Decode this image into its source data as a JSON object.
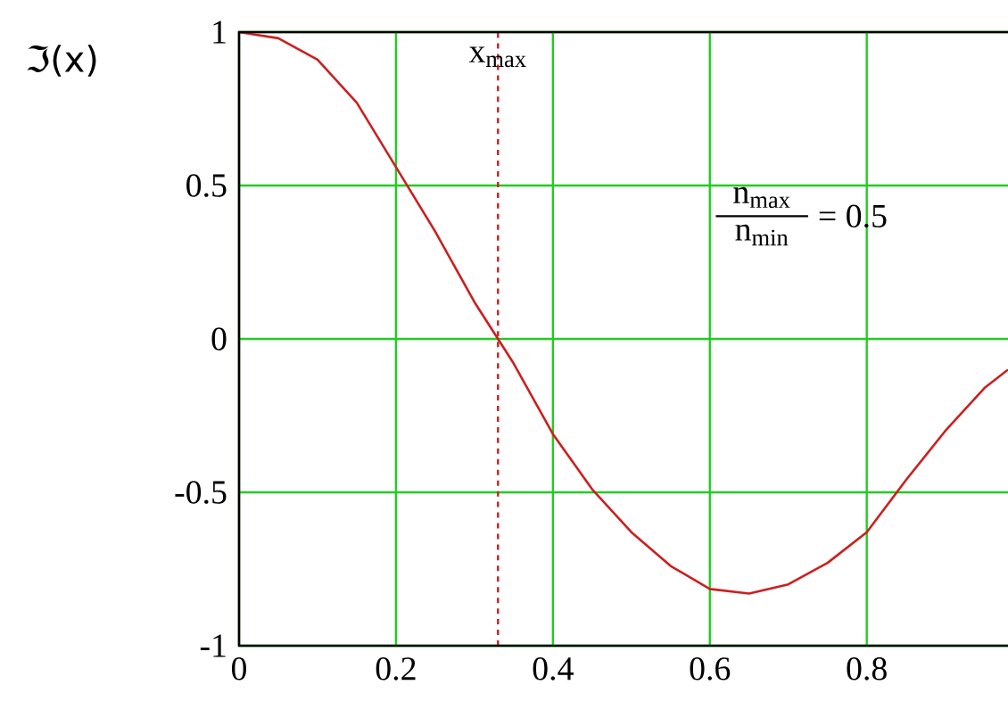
{
  "chart_data": {
    "type": "line",
    "ylabel": "ℑ(x)",
    "x": [
      0,
      0.05,
      0.1,
      0.15,
      0.2,
      0.25,
      0.3,
      0.33,
      0.35,
      0.4,
      0.45,
      0.5,
      0.55,
      0.6,
      0.65,
      0.7,
      0.75,
      0.8,
      0.85,
      0.9,
      0.95,
      0.98
    ],
    "series": [
      {
        "color": "#cc1f1f",
        "values": [
          1,
          0.98,
          0.91,
          0.77,
          0.56,
          0.35,
          0.12,
          0,
          -0.08,
          -0.31,
          -0.49,
          -0.63,
          -0.74,
          -0.815,
          -0.83,
          -0.8,
          -0.73,
          -0.63,
          -0.46,
          -0.3,
          -0.16,
          -0.1
        ]
      }
    ],
    "xlim": [
      0,
      0.98
    ],
    "ylim": [
      -1,
      1
    ],
    "xticks": [
      0,
      0.2,
      0.4,
      0.6,
      0.8
    ],
    "yticks": [
      -1,
      -0.5,
      0,
      0.5,
      1
    ],
    "grid": true,
    "marker": "none",
    "line_style": "solid",
    "ref_lines": [
      {
        "axis": "x",
        "value": 0.33,
        "label": "x$_{max}$",
        "color": "#cc1f1f",
        "line_style": "dashed"
      }
    ],
    "annotations": [
      "n$_{max}$",
      "n$_{min}$",
      "= 0.5"
    ]
  }
}
